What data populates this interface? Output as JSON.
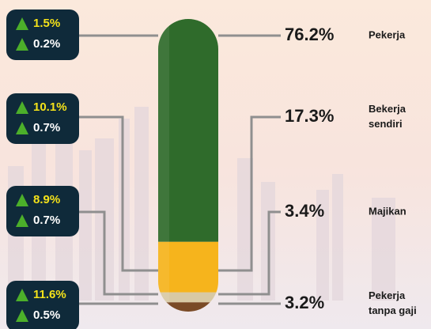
{
  "chart_data": {
    "type": "stacked-bar",
    "series": [
      {
        "name": "Pekerja",
        "color": "#2f6b2b",
        "values": [
          76.2
        ],
        "value_labels": [
          "76.2%"
        ],
        "changes": [
          1.5,
          0.2
        ],
        "change_labels": [
          "1.5%",
          "0.2%"
        ]
      },
      {
        "name": "Bekerja sendiri",
        "color": "#f6b41c",
        "values": [
          17.3
        ],
        "value_labels": [
          "17.3%"
        ],
        "changes": [
          10.1,
          0.7
        ],
        "change_labels": [
          "10.1%",
          "0.7%"
        ]
      },
      {
        "name": "Majikan",
        "color": "#d8c9a4",
        "values": [
          3.4
        ],
        "value_labels": [
          "3.4%"
        ],
        "changes": [
          8.9,
          0.7
        ],
        "change_labels": [
          "8.9%",
          "0.7%"
        ]
      },
      {
        "name": "Pekerja tanpa gaji",
        "color": "#7a4a26",
        "values": [
          3.2
        ],
        "value_labels": [
          "3.2%"
        ],
        "changes": [
          11.6,
          0.5
        ],
        "change_labels": [
          "11.6%",
          "0.5%"
        ]
      }
    ]
  }
}
